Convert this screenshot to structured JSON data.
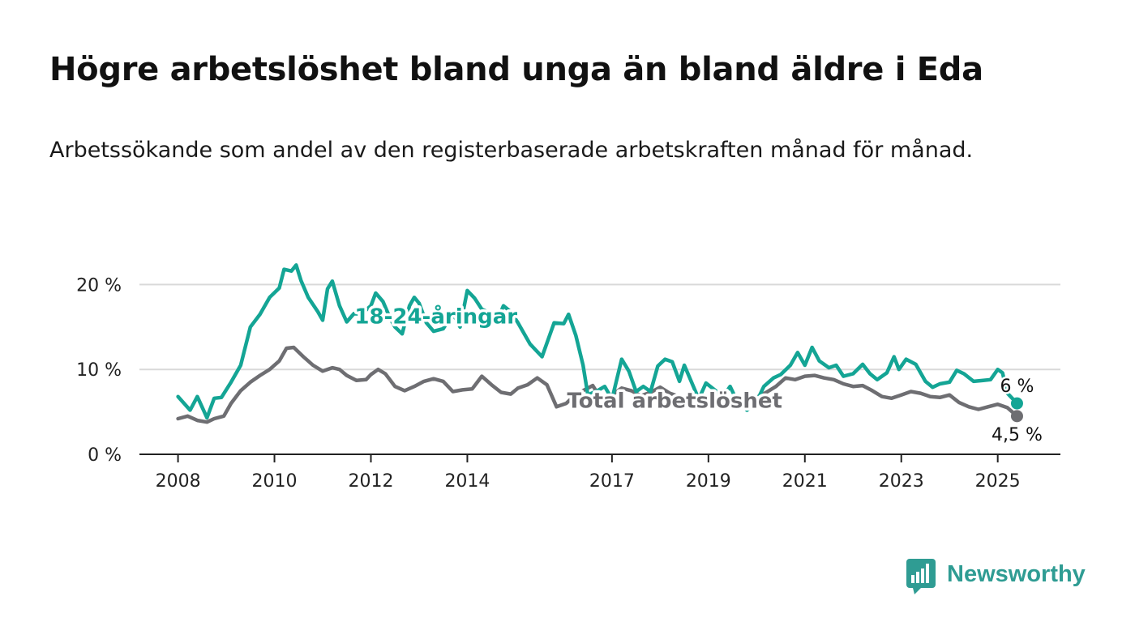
{
  "title": "Högre arbetslöshet bland unga än bland äldre i Eda",
  "subtitle": "Arbetssökande som andel av den registerbaserade arbetskraften månad för månad.",
  "logo": {
    "text": "Newsworthy"
  },
  "colors": {
    "youth": "#14a595",
    "total": "#6e6e72",
    "grid": "#d9d9d9",
    "axis": "#222222",
    "text": "#222222"
  },
  "chart_data": {
    "type": "line",
    "y_ticks": [
      0,
      10,
      20
    ],
    "y_tick_labels": [
      "0 %",
      "10 %",
      "20 %"
    ],
    "ylim": [
      0,
      23
    ],
    "x_tick_labels": [
      "2008",
      "2010",
      "2012",
      "2014",
      "2017",
      "2019",
      "2021",
      "2023",
      "2025"
    ],
    "x_ticks": [
      2008.0,
      2010.0,
      2012.0,
      2014.0,
      2017.0,
      2019.0,
      2021.0,
      2023.0,
      2025.0
    ],
    "xlim": [
      2007.2,
      2026.3
    ],
    "grid": true,
    "series": [
      {
        "name": "18-24-åringar",
        "color_key": "youth",
        "end_label": "6 %",
        "points": [
          [
            2008.0,
            6.8
          ],
          [
            2008.25,
            5.2
          ],
          [
            2008.4,
            6.8
          ],
          [
            2008.6,
            4.3
          ],
          [
            2008.75,
            6.6
          ],
          [
            2008.9,
            6.7
          ],
          [
            2009.1,
            8.5
          ],
          [
            2009.3,
            10.5
          ],
          [
            2009.5,
            15.0
          ],
          [
            2009.7,
            16.5
          ],
          [
            2009.9,
            18.5
          ],
          [
            2010.1,
            19.6
          ],
          [
            2010.2,
            21.8
          ],
          [
            2010.35,
            21.6
          ],
          [
            2010.45,
            22.3
          ],
          [
            2010.55,
            20.5
          ],
          [
            2010.7,
            18.5
          ],
          [
            2010.9,
            16.8
          ],
          [
            2011.0,
            15.8
          ],
          [
            2011.1,
            19.5
          ],
          [
            2011.2,
            20.4
          ],
          [
            2011.35,
            17.5
          ],
          [
            2011.5,
            15.6
          ],
          [
            2011.65,
            16.6
          ],
          [
            2011.8,
            16.5
          ],
          [
            2012.0,
            17.5
          ],
          [
            2012.1,
            19.0
          ],
          [
            2012.25,
            18.0
          ],
          [
            2012.4,
            16.0
          ],
          [
            2012.5,
            15.0
          ],
          [
            2012.65,
            14.2
          ],
          [
            2012.8,
            17.5
          ],
          [
            2012.9,
            18.5
          ],
          [
            2013.0,
            17.8
          ],
          [
            2013.15,
            15.5
          ],
          [
            2013.3,
            14.5
          ],
          [
            2013.5,
            14.8
          ],
          [
            2013.7,
            16.6
          ],
          [
            2013.85,
            15.0
          ],
          [
            2014.0,
            19.3
          ],
          [
            2014.15,
            18.4
          ],
          [
            2014.3,
            17.1
          ],
          [
            2014.45,
            16.7
          ],
          [
            2014.6,
            15.5
          ],
          [
            2014.75,
            17.5
          ],
          [
            2014.9,
            16.8
          ],
          [
            2015.05,
            15.5
          ],
          [
            2015.3,
            13.0
          ],
          [
            2015.55,
            11.5
          ],
          [
            2015.8,
            15.5
          ],
          [
            2016.0,
            15.4
          ],
          [
            2016.1,
            16.5
          ],
          [
            2016.25,
            14.0
          ],
          [
            2016.4,
            10.5
          ],
          [
            2016.5,
            7.0
          ],
          [
            2016.7,
            7.5
          ],
          [
            2016.85,
            8.0
          ],
          [
            2017.0,
            6.5
          ],
          [
            2017.2,
            11.2
          ],
          [
            2017.35,
            9.8
          ],
          [
            2017.5,
            7.4
          ],
          [
            2017.65,
            8.0
          ],
          [
            2017.8,
            7.4
          ],
          [
            2017.95,
            10.4
          ],
          [
            2018.1,
            11.2
          ],
          [
            2018.25,
            10.9
          ],
          [
            2018.4,
            8.6
          ],
          [
            2018.5,
            10.5
          ],
          [
            2018.65,
            8.5
          ],
          [
            2018.8,
            6.5
          ],
          [
            2018.95,
            8.4
          ],
          [
            2019.15,
            7.5
          ],
          [
            2019.3,
            6.8
          ],
          [
            2019.45,
            8.0
          ],
          [
            2019.6,
            6.2
          ],
          [
            2019.8,
            5.2
          ],
          [
            2020.0,
            6.2
          ],
          [
            2020.15,
            8.0
          ],
          [
            2020.35,
            9.0
          ],
          [
            2020.5,
            9.4
          ],
          [
            2020.7,
            10.5
          ],
          [
            2020.85,
            12.0
          ],
          [
            2021.0,
            10.5
          ],
          [
            2021.15,
            12.6
          ],
          [
            2021.3,
            11.0
          ],
          [
            2021.5,
            10.2
          ],
          [
            2021.65,
            10.5
          ],
          [
            2021.8,
            9.2
          ],
          [
            2022.0,
            9.5
          ],
          [
            2022.2,
            10.6
          ],
          [
            2022.35,
            9.5
          ],
          [
            2022.5,
            8.8
          ],
          [
            2022.7,
            9.6
          ],
          [
            2022.85,
            11.5
          ],
          [
            2022.95,
            10.0
          ],
          [
            2023.1,
            11.2
          ],
          [
            2023.3,
            10.6
          ],
          [
            2023.5,
            8.6
          ],
          [
            2023.65,
            7.9
          ],
          [
            2023.8,
            8.3
          ],
          [
            2024.0,
            8.5
          ],
          [
            2024.15,
            9.9
          ],
          [
            2024.3,
            9.5
          ],
          [
            2024.5,
            8.6
          ],
          [
            2024.7,
            8.7
          ],
          [
            2024.85,
            8.8
          ],
          [
            2025.0,
            10.0
          ],
          [
            2025.1,
            9.6
          ],
          [
            2025.2,
            7.2
          ],
          [
            2025.4,
            6.0
          ]
        ]
      },
      {
        "name": "Total arbetslöshet",
        "color_key": "total",
        "end_label": "4,5 %",
        "points": [
          [
            2008.0,
            4.2
          ],
          [
            2008.2,
            4.5
          ],
          [
            2008.4,
            4.0
          ],
          [
            2008.6,
            3.8
          ],
          [
            2008.75,
            4.2
          ],
          [
            2008.95,
            4.5
          ],
          [
            2009.1,
            6.0
          ],
          [
            2009.3,
            7.5
          ],
          [
            2009.5,
            8.5
          ],
          [
            2009.7,
            9.3
          ],
          [
            2009.9,
            10.0
          ],
          [
            2010.1,
            11.0
          ],
          [
            2010.25,
            12.5
          ],
          [
            2010.4,
            12.6
          ],
          [
            2010.6,
            11.5
          ],
          [
            2010.8,
            10.5
          ],
          [
            2011.0,
            9.8
          ],
          [
            2011.2,
            10.2
          ],
          [
            2011.35,
            10.0
          ],
          [
            2011.5,
            9.3
          ],
          [
            2011.7,
            8.7
          ],
          [
            2011.9,
            8.8
          ],
          [
            2012.0,
            9.4
          ],
          [
            2012.15,
            10.0
          ],
          [
            2012.3,
            9.5
          ],
          [
            2012.5,
            8.0
          ],
          [
            2012.7,
            7.5
          ],
          [
            2012.9,
            8.0
          ],
          [
            2013.1,
            8.6
          ],
          [
            2013.3,
            8.9
          ],
          [
            2013.5,
            8.6
          ],
          [
            2013.7,
            7.4
          ],
          [
            2013.9,
            7.6
          ],
          [
            2014.1,
            7.7
          ],
          [
            2014.3,
            9.2
          ],
          [
            2014.5,
            8.2
          ],
          [
            2014.7,
            7.3
          ],
          [
            2014.9,
            7.1
          ],
          [
            2015.05,
            7.8
          ],
          [
            2015.25,
            8.2
          ],
          [
            2015.45,
            9.0
          ],
          [
            2015.65,
            8.2
          ],
          [
            2015.85,
            5.6
          ],
          [
            2016.05,
            6.0
          ],
          [
            2016.2,
            6.8
          ],
          [
            2016.4,
            7.5
          ],
          [
            2016.6,
            8.1
          ],
          [
            2016.8,
            6.3
          ],
          [
            2017.0,
            7.0
          ],
          [
            2017.2,
            7.8
          ],
          [
            2017.4,
            7.5
          ],
          [
            2017.6,
            6.9
          ],
          [
            2017.8,
            7.3
          ],
          [
            2018.0,
            7.9
          ],
          [
            2018.2,
            7.2
          ],
          [
            2018.4,
            6.8
          ],
          [
            2018.6,
            6.5
          ],
          [
            2018.8,
            6.5
          ],
          [
            2019.0,
            6.3
          ],
          [
            2019.2,
            6.8
          ],
          [
            2019.4,
            6.2
          ],
          [
            2019.6,
            6.5
          ],
          [
            2019.8,
            6.5
          ],
          [
            2020.0,
            6.7
          ],
          [
            2020.2,
            7.3
          ],
          [
            2020.4,
            8.0
          ],
          [
            2020.6,
            9.0
          ],
          [
            2020.8,
            8.8
          ],
          [
            2021.0,
            9.2
          ],
          [
            2021.2,
            9.3
          ],
          [
            2021.4,
            9.0
          ],
          [
            2021.6,
            8.8
          ],
          [
            2021.8,
            8.3
          ],
          [
            2022.0,
            8.0
          ],
          [
            2022.2,
            8.1
          ],
          [
            2022.4,
            7.5
          ],
          [
            2022.6,
            6.8
          ],
          [
            2022.8,
            6.6
          ],
          [
            2023.0,
            7.0
          ],
          [
            2023.2,
            7.4
          ],
          [
            2023.4,
            7.2
          ],
          [
            2023.6,
            6.8
          ],
          [
            2023.8,
            6.7
          ],
          [
            2024.0,
            7.0
          ],
          [
            2024.2,
            6.1
          ],
          [
            2024.4,
            5.6
          ],
          [
            2024.6,
            5.3
          ],
          [
            2024.8,
            5.6
          ],
          [
            2025.0,
            5.9
          ],
          [
            2025.2,
            5.5
          ],
          [
            2025.4,
            4.5
          ]
        ]
      }
    ],
    "labels": [
      {
        "text": "18-24-åringar",
        "series": "youth",
        "x": 2013.35,
        "y": 15.4
      },
      {
        "text": "Total arbetslöshet",
        "series": "total",
        "x": 2018.3,
        "y": 5.5
      }
    ]
  }
}
